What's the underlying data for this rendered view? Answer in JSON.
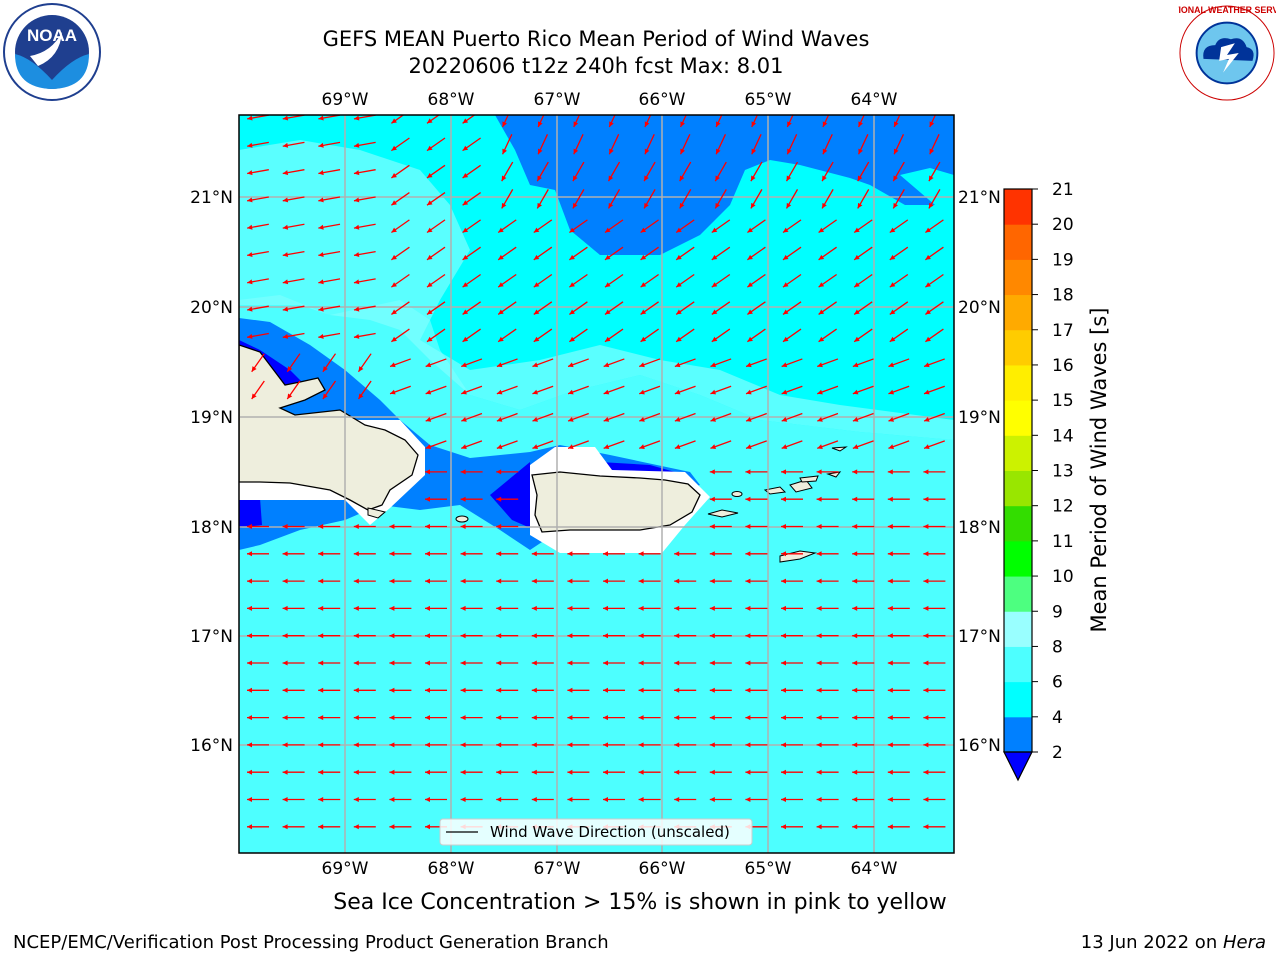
{
  "header": {
    "title_line1": "GEFS MEAN Puerto Rico Mean Period of Wind Waves",
    "title_line2": "20220606 t12z 240h fcst   Max: 8.01"
  },
  "map": {
    "lon_labels": [
      "69°W",
      "68°W",
      "67°W",
      "66°W",
      "65°W",
      "64°W"
    ],
    "lat_labels": [
      "21°N",
      "20°N",
      "19°N",
      "18°N",
      "17°N",
      "16°N"
    ],
    "legend_label": "Wind Wave Direction (unscaled)",
    "colors": {
      "ocean_light": "#4dffff",
      "ocean_cyan": "#00ffff",
      "ocean_pale": "#80ffff",
      "band_blue": "#0080ff",
      "band_dark": "#0000ff",
      "land": "#eeeedd",
      "arrow": "#ff0000"
    }
  },
  "colorbar": {
    "label": "Mean Period of Wind Waves [s]",
    "ticks": [
      "2",
      "4",
      "6",
      "8",
      "9",
      "10",
      "11",
      "12",
      "13",
      "14",
      "15",
      "16",
      "17",
      "18",
      "19",
      "20",
      "21"
    ],
    "colors": [
      "#0080ff",
      "#00ffff",
      "#4dffff",
      "#99ffff",
      "#4dff80",
      "#00ff00",
      "#33dd00",
      "#99e600",
      "#ccf200",
      "#ffff00",
      "#ffee00",
      "#ffcc00",
      "#ffaa00",
      "#ff8800",
      "#ff6600",
      "#ff3300",
      "#ff0000"
    ],
    "under_color": "#0000ff"
  },
  "subtitle": "Sea Ice Concentration > 15% is shown in pink to yellow",
  "footer": {
    "left": "NCEP/EMC/Verification Post Processing Product Generation Branch",
    "right_date": "13 Jun 2022 on ",
    "right_host": "Hera"
  },
  "logos": {
    "left_text": "NOAA",
    "right_text": "NATIONAL WEATHER SERVICE"
  }
}
